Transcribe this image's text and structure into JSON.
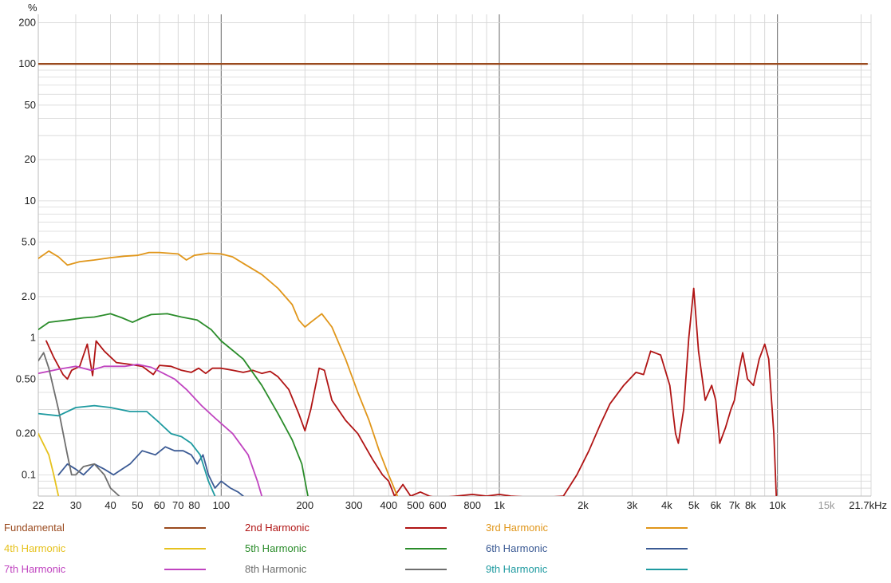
{
  "chart_data": {
    "type": "line",
    "title": "",
    "xlabel": "",
    "ylabel": "%",
    "x_unit": "kHz",
    "x_scale": "log",
    "y_scale": "log",
    "xlim": [
      22,
      21700
    ],
    "ylim": [
      0.07,
      230
    ],
    "x_tick_labels": [
      {
        "v": 22,
        "label": "22"
      },
      {
        "v": 30,
        "label": "30"
      },
      {
        "v": 40,
        "label": "40"
      },
      {
        "v": 50,
        "label": "50"
      },
      {
        "v": 60,
        "label": "60"
      },
      {
        "v": 70,
        "label": "70"
      },
      {
        "v": 80,
        "label": "80"
      },
      {
        "v": 100,
        "label": "100"
      },
      {
        "v": 200,
        "label": "200"
      },
      {
        "v": 300,
        "label": "300"
      },
      {
        "v": 400,
        "label": "400"
      },
      {
        "v": 500,
        "label": "500"
      },
      {
        "v": 600,
        "label": "600"
      },
      {
        "v": 800,
        "label": "800"
      },
      {
        "v": 1000,
        "label": "1k"
      },
      {
        "v": 2000,
        "label": "2k"
      },
      {
        "v": 3000,
        "label": "3k"
      },
      {
        "v": 4000,
        "label": "4k"
      },
      {
        "v": 5000,
        "label": "5k"
      },
      {
        "v": 6000,
        "label": "6k"
      },
      {
        "v": 7000,
        "label": "7k"
      },
      {
        "v": 8000,
        "label": "8k"
      },
      {
        "v": 10000,
        "label": "10k"
      },
      {
        "v": 15000,
        "label": "15k"
      },
      {
        "v": 21700,
        "label": "21.7kHz"
      }
    ],
    "y_tick_labels": [
      {
        "v": 200,
        "label": "200"
      },
      {
        "v": 100,
        "label": "100"
      },
      {
        "v": 50,
        "label": "50"
      },
      {
        "v": 20,
        "label": "20"
      },
      {
        "v": 10,
        "label": "10"
      },
      {
        "v": 5,
        "label": "5.0"
      },
      {
        "v": 2,
        "label": "2.0"
      },
      {
        "v": 1,
        "label": "1"
      },
      {
        "v": 0.5,
        "label": "0.50"
      },
      {
        "v": 0.2,
        "label": "0.20"
      },
      {
        "v": 0.1,
        "label": "0.1"
      }
    ],
    "series": [
      {
        "name": "Fundamental",
        "color": "#9a4a1e",
        "points": [
          [
            22,
            100
          ],
          [
            21000,
            100
          ]
        ]
      },
      {
        "name": "2nd Harmonic",
        "color": "#b01414",
        "points": [
          [
            23.5,
            0.95
          ],
          [
            25,
            0.72
          ],
          [
            27,
            0.54
          ],
          [
            28,
            0.5
          ],
          [
            29,
            0.58
          ],
          [
            31,
            0.62
          ],
          [
            33,
            0.9
          ],
          [
            34.5,
            0.53
          ],
          [
            35.5,
            0.95
          ],
          [
            38,
            0.8
          ],
          [
            42,
            0.66
          ],
          [
            47,
            0.64
          ],
          [
            52,
            0.62
          ],
          [
            57,
            0.54
          ],
          [
            60,
            0.63
          ],
          [
            66,
            0.62
          ],
          [
            72,
            0.58
          ],
          [
            78,
            0.56
          ],
          [
            83,
            0.6
          ],
          [
            88,
            0.55
          ],
          [
            93,
            0.6
          ],
          [
            100,
            0.6
          ],
          [
            110,
            0.58
          ],
          [
            120,
            0.56
          ],
          [
            130,
            0.58
          ],
          [
            140,
            0.55
          ],
          [
            150,
            0.57
          ],
          [
            160,
            0.52
          ],
          [
            175,
            0.42
          ],
          [
            190,
            0.28
          ],
          [
            200,
            0.21
          ],
          [
            210,
            0.3
          ],
          [
            225,
            0.6
          ],
          [
            235,
            0.58
          ],
          [
            250,
            0.35
          ],
          [
            280,
            0.25
          ],
          [
            310,
            0.2
          ],
          [
            330,
            0.16
          ],
          [
            350,
            0.13
          ],
          [
            380,
            0.1
          ],
          [
            400,
            0.09
          ],
          [
            420,
            0.07
          ],
          [
            450,
            0.085
          ],
          [
            480,
            0.07
          ],
          [
            520,
            0.075
          ],
          [
            560,
            0.07
          ],
          [
            600,
            0.068
          ],
          [
            700,
            0.07
          ],
          [
            800,
            0.072
          ],
          [
            900,
            0.07
          ],
          [
            1000,
            0.072
          ],
          [
            1100,
            0.07
          ],
          [
            1400,
            0.068
          ],
          [
            1700,
            0.07
          ],
          [
            1900,
            0.1
          ],
          [
            2100,
            0.15
          ],
          [
            2300,
            0.23
          ],
          [
            2500,
            0.33
          ],
          [
            2800,
            0.45
          ],
          [
            3100,
            0.56
          ],
          [
            3300,
            0.54
          ],
          [
            3500,
            0.8
          ],
          [
            3800,
            0.75
          ],
          [
            4100,
            0.45
          ],
          [
            4300,
            0.2
          ],
          [
            4400,
            0.17
          ],
          [
            4600,
            0.3
          ],
          [
            4800,
            1.0
          ],
          [
            5000,
            2.3
          ],
          [
            5200,
            0.8
          ],
          [
            5500,
            0.35
          ],
          [
            5800,
            0.45
          ],
          [
            6000,
            0.35
          ],
          [
            6200,
            0.17
          ],
          [
            6500,
            0.22
          ],
          [
            6800,
            0.3
          ],
          [
            7000,
            0.35
          ],
          [
            7300,
            0.6
          ],
          [
            7500,
            0.78
          ],
          [
            7800,
            0.5
          ],
          [
            8200,
            0.45
          ],
          [
            8600,
            0.7
          ],
          [
            9000,
            0.9
          ],
          [
            9300,
            0.7
          ],
          [
            9700,
            0.2
          ],
          [
            9900,
            0.07
          ]
        ]
      },
      {
        "name": "3rd Harmonic",
        "color": "#e0961a",
        "points": [
          [
            22,
            3.8
          ],
          [
            24,
            4.3
          ],
          [
            26,
            3.9
          ],
          [
            28,
            3.4
          ],
          [
            31,
            3.6
          ],
          [
            35,
            3.7
          ],
          [
            40,
            3.85
          ],
          [
            45,
            3.95
          ],
          [
            50,
            4.0
          ],
          [
            55,
            4.2
          ],
          [
            60,
            4.2
          ],
          [
            70,
            4.1
          ],
          [
            75,
            3.7
          ],
          [
            80,
            4.0
          ],
          [
            90,
            4.15
          ],
          [
            100,
            4.1
          ],
          [
            110,
            3.9
          ],
          [
            120,
            3.5
          ],
          [
            140,
            2.9
          ],
          [
            160,
            2.3
          ],
          [
            180,
            1.75
          ],
          [
            190,
            1.35
          ],
          [
            200,
            1.2
          ],
          [
            210,
            1.3
          ],
          [
            230,
            1.5
          ],
          [
            250,
            1.2
          ],
          [
            280,
            0.7
          ],
          [
            310,
            0.4
          ],
          [
            340,
            0.25
          ],
          [
            370,
            0.15
          ],
          [
            400,
            0.1
          ],
          [
            430,
            0.07
          ]
        ]
      },
      {
        "name": "4th Harmonic",
        "color": "#e6c21e",
        "points": [
          [
            22,
            0.2
          ],
          [
            24,
            0.14
          ],
          [
            25,
            0.1
          ],
          [
            26,
            0.07
          ]
        ]
      },
      {
        "name": "5th Harmonic",
        "color": "#2a8c2a",
        "points": [
          [
            22,
            1.15
          ],
          [
            24,
            1.3
          ],
          [
            28,
            1.35
          ],
          [
            32,
            1.4
          ],
          [
            35,
            1.42
          ],
          [
            40,
            1.5
          ],
          [
            44,
            1.4
          ],
          [
            48,
            1.3
          ],
          [
            52,
            1.4
          ],
          [
            56,
            1.48
          ],
          [
            64,
            1.5
          ],
          [
            72,
            1.42
          ],
          [
            82,
            1.35
          ],
          [
            92,
            1.15
          ],
          [
            100,
            0.95
          ],
          [
            120,
            0.7
          ],
          [
            140,
            0.45
          ],
          [
            160,
            0.28
          ],
          [
            180,
            0.18
          ],
          [
            195,
            0.12
          ],
          [
            205,
            0.07
          ]
        ]
      },
      {
        "name": "6th Harmonic",
        "color": "#3b5a94",
        "points": [
          [
            26,
            0.1
          ],
          [
            28,
            0.12
          ],
          [
            30,
            0.11
          ],
          [
            32,
            0.1
          ],
          [
            35,
            0.12
          ],
          [
            38,
            0.11
          ],
          [
            41,
            0.1
          ],
          [
            44,
            0.11
          ],
          [
            47,
            0.12
          ],
          [
            52,
            0.15
          ],
          [
            58,
            0.14
          ],
          [
            63,
            0.16
          ],
          [
            68,
            0.15
          ],
          [
            73,
            0.15
          ],
          [
            78,
            0.14
          ],
          [
            82,
            0.12
          ],
          [
            86,
            0.14
          ],
          [
            90,
            0.1
          ],
          [
            95,
            0.08
          ],
          [
            100,
            0.09
          ],
          [
            108,
            0.08
          ],
          [
            115,
            0.075
          ],
          [
            120,
            0.07
          ]
        ]
      },
      {
        "name": "7th Harmonic",
        "color": "#c044c0",
        "points": [
          [
            22,
            0.55
          ],
          [
            26,
            0.59
          ],
          [
            30,
            0.62
          ],
          [
            34,
            0.58
          ],
          [
            38,
            0.62
          ],
          [
            45,
            0.62
          ],
          [
            50,
            0.64
          ],
          [
            56,
            0.61
          ],
          [
            62,
            0.55
          ],
          [
            68,
            0.5
          ],
          [
            75,
            0.42
          ],
          [
            85,
            0.32
          ],
          [
            95,
            0.26
          ],
          [
            110,
            0.2
          ],
          [
            125,
            0.14
          ],
          [
            135,
            0.09
          ],
          [
            140,
            0.07
          ]
        ]
      },
      {
        "name": "8th Harmonic",
        "color": "#6e6e6e",
        "points": [
          [
            22,
            0.68
          ],
          [
            23,
            0.78
          ],
          [
            24,
            0.6
          ],
          [
            26,
            0.3
          ],
          [
            28,
            0.14
          ],
          [
            29,
            0.1
          ],
          [
            30,
            0.1
          ],
          [
            32,
            0.115
          ],
          [
            35,
            0.12
          ],
          [
            38,
            0.1
          ],
          [
            40,
            0.08
          ],
          [
            43,
            0.07
          ]
        ]
      },
      {
        "name": "9th Harmonic",
        "color": "#1e9aa0",
        "points": [
          [
            22,
            0.28
          ],
          [
            26,
            0.27
          ],
          [
            30,
            0.31
          ],
          [
            35,
            0.32
          ],
          [
            40,
            0.31
          ],
          [
            47,
            0.29
          ],
          [
            54,
            0.29
          ],
          [
            60,
            0.24
          ],
          [
            66,
            0.2
          ],
          [
            72,
            0.19
          ],
          [
            78,
            0.17
          ],
          [
            84,
            0.14
          ],
          [
            90,
            0.09
          ],
          [
            95,
            0.07
          ]
        ]
      }
    ]
  },
  "legend": {
    "fundamental": "Fundamental",
    "h2": "2nd Harmonic",
    "h3": "3rd Harmonic",
    "h4": "4th Harmonic",
    "h5": "5th Harmonic",
    "h6": "6th Harmonic",
    "h7": "7th Harmonic",
    "h8": "8th Harmonic",
    "h9": "9th Harmonic"
  }
}
